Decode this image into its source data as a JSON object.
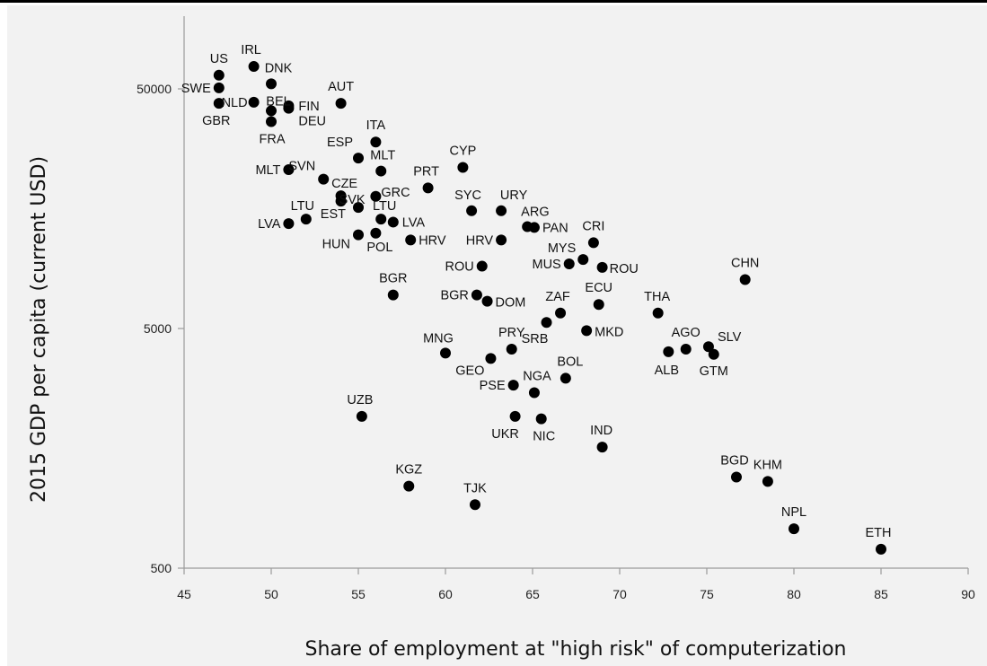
{
  "chart_data": {
    "type": "scatter",
    "title": "",
    "xlabel": "Share of employment at \"high risk\" of computerization",
    "ylabel": "2015 GDP per capita (current USD)",
    "xlim": [
      45,
      90
    ],
    "ylim": [
      500,
      100000
    ],
    "y_scale": "log",
    "x_ticks": [
      45,
      50,
      55,
      60,
      65,
      70,
      75,
      80,
      85,
      90
    ],
    "y_ticks": [
      500,
      5000,
      50000
    ],
    "grid": false,
    "legend": "none",
    "colors": {
      "point": "#000000",
      "axis": "#9a9a9a",
      "background": "#f2f2f2"
    },
    "points": [
      {
        "label": "US",
        "x": 47.0,
        "y": 57000
      },
      {
        "label": "SWE",
        "x": 47.0,
        "y": 50500
      },
      {
        "label": "GBR",
        "x": 47.0,
        "y": 43500
      },
      {
        "label": "IRL",
        "x": 49.0,
        "y": 62000
      },
      {
        "label": "NLD",
        "x": 49.0,
        "y": 44000
      },
      {
        "label": "DNK",
        "x": 50.0,
        "y": 52500
      },
      {
        "label": "BEL",
        "x": 50.0,
        "y": 40500
      },
      {
        "label": "FRA",
        "x": 50.0,
        "y": 36500
      },
      {
        "label": "FIN",
        "x": 51.0,
        "y": 42500
      },
      {
        "label": "DEU",
        "x": 51.0,
        "y": 41500
      },
      {
        "label": "AUT",
        "x": 54.0,
        "y": 43500
      },
      {
        "label": "ITA",
        "x": 56.0,
        "y": 30000
      },
      {
        "label": "ESP",
        "x": 55.0,
        "y": 25700
      },
      {
        "label": "MLT",
        "x": 56.3,
        "y": 22700
      },
      {
        "label": "MLT",
        "x": 51.0,
        "y": 23000
      },
      {
        "label": "SVN",
        "x": 53.0,
        "y": 21000
      },
      {
        "label": "CZE",
        "x": 54.0,
        "y": 17900
      },
      {
        "label": "SVK",
        "x": 54.0,
        "y": 17000
      },
      {
        "label": "GRC",
        "x": 56.0,
        "y": 17800
      },
      {
        "label": "EST",
        "x": 55.0,
        "y": 16000
      },
      {
        "label": "LTU",
        "x": 52.0,
        "y": 14300
      },
      {
        "label": "LVA",
        "x": 51.0,
        "y": 13700
      },
      {
        "label": "LTU",
        "x": 56.3,
        "y": 14300
      },
      {
        "label": "LVA",
        "x": 57.0,
        "y": 13900
      },
      {
        "label": "HUN",
        "x": 55.0,
        "y": 12300
      },
      {
        "label": "POL",
        "x": 56.0,
        "y": 12500
      },
      {
        "label": "HRV",
        "x": 58.0,
        "y": 11700
      },
      {
        "label": "PRT",
        "x": 59.0,
        "y": 19300
      },
      {
        "label": "CYP",
        "x": 61.0,
        "y": 23500
      },
      {
        "label": "SYC",
        "x": 61.5,
        "y": 15500
      },
      {
        "label": "URY",
        "x": 63.2,
        "y": 15500
      },
      {
        "label": "ARG",
        "x": 64.7,
        "y": 13300
      },
      {
        "label": "PAN",
        "x": 65.1,
        "y": 13200
      },
      {
        "label": "HRV",
        "x": 63.2,
        "y": 11700
      },
      {
        "label": "ROU",
        "x": 62.1,
        "y": 9100
      },
      {
        "label": "CRI",
        "x": 68.5,
        "y": 11400
      },
      {
        "label": "MYS",
        "x": 67.9,
        "y": 9700
      },
      {
        "label": "MUS",
        "x": 67.1,
        "y": 9300
      },
      {
        "label": "ROU",
        "x": 69.0,
        "y": 9000
      },
      {
        "label": "CHN",
        "x": 77.2,
        "y": 8000
      },
      {
        "label": "BGR",
        "x": 57.0,
        "y": 6900
      },
      {
        "label": "BGR",
        "x": 61.8,
        "y": 6900
      },
      {
        "label": "DOM",
        "x": 62.4,
        "y": 6500
      },
      {
        "label": "ZAF",
        "x": 66.6,
        "y": 5800
      },
      {
        "label": "ECU",
        "x": 68.8,
        "y": 6300
      },
      {
        "label": "SRB",
        "x": 65.8,
        "y": 5300
      },
      {
        "label": "MKD",
        "x": 68.1,
        "y": 4900
      },
      {
        "label": "THA",
        "x": 72.2,
        "y": 5800
      },
      {
        "label": "AGO",
        "x": 73.8,
        "y": 4100
      },
      {
        "label": "ALB",
        "x": 72.8,
        "y": 4000
      },
      {
        "label": "SLV",
        "x": 75.1,
        "y": 4200
      },
      {
        "label": "GTM",
        "x": 75.4,
        "y": 3900
      },
      {
        "label": "MNG",
        "x": 60.0,
        "y": 3950
      },
      {
        "label": "PRY",
        "x": 63.8,
        "y": 4100
      },
      {
        "label": "GEO",
        "x": 62.6,
        "y": 3750
      },
      {
        "label": "BOL",
        "x": 66.9,
        "y": 3100
      },
      {
        "label": "NGA",
        "x": 65.1,
        "y": 2700
      },
      {
        "label": "PSE",
        "x": 63.9,
        "y": 2900
      },
      {
        "label": "UZB",
        "x": 55.2,
        "y": 2150
      },
      {
        "label": "UKR",
        "x": 64.0,
        "y": 2150
      },
      {
        "label": "NIC",
        "x": 65.5,
        "y": 2100
      },
      {
        "label": "IND",
        "x": 69.0,
        "y": 1600
      },
      {
        "label": "KGZ",
        "x": 57.9,
        "y": 1100
      },
      {
        "label": "TJK",
        "x": 61.7,
        "y": 920
      },
      {
        "label": "BGD",
        "x": 76.7,
        "y": 1200
      },
      {
        "label": "KHM",
        "x": 78.5,
        "y": 1150
      },
      {
        "label": "NPL",
        "x": 80.0,
        "y": 730
      },
      {
        "label": "ETH",
        "x": 85.0,
        "y": 600
      }
    ]
  }
}
